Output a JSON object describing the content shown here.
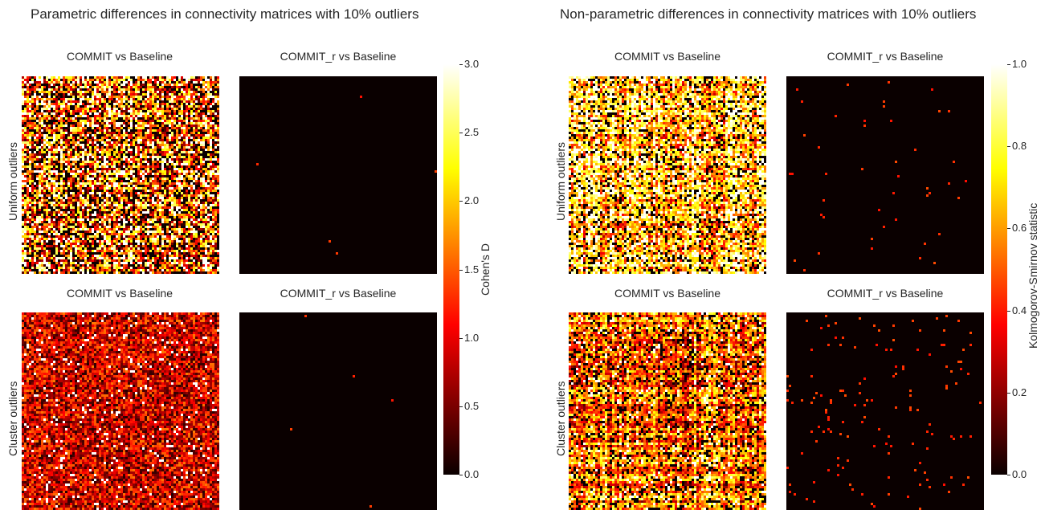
{
  "chart_data": [
    {
      "type": "heatmap",
      "title": "Parametric differences in connectivity matrices with 10% outliers",
      "colormap": "hot",
      "colorbar": {
        "label": "Cohen's D",
        "range": [
          0,
          3.0
        ],
        "ticks": [
          "0.0",
          "0.5",
          "1.0",
          "1.5",
          "2.0",
          "2.5",
          "3.0"
        ]
      },
      "row_labels": [
        "Uniform outliers",
        "Cluster outliers"
      ],
      "panels": [
        {
          "title": "COMMIT vs Baseline",
          "row": 0,
          "size": 82,
          "mean_level": 0.55,
          "spread": 0.5,
          "streaks": true
        },
        {
          "title": "COMMIT_r vs Baseline",
          "row": 0,
          "size": 82,
          "mean_level": 0.0,
          "sparse_points": 5
        },
        {
          "title": "COMMIT vs Baseline",
          "row": 1,
          "size": 82,
          "mean_level": 0.3,
          "spread": 0.25,
          "streaks": false
        },
        {
          "title": "COMMIT_r vs Baseline",
          "row": 1,
          "size": 82,
          "mean_level": 0.0,
          "sparse_points": 5
        }
      ]
    },
    {
      "type": "heatmap",
      "title": "Non-parametric differences in connectivity matrices with 10% outliers",
      "colormap": "hot",
      "colorbar": {
        "label": "Kolmogorov-Smirnov statistic",
        "range": [
          0,
          1.0
        ],
        "ticks": [
          "0.0",
          "0.2",
          "0.4",
          "0.6",
          "0.8",
          "1.0"
        ]
      },
      "row_labels": [
        "Uniform outliers",
        "Cluster outliers"
      ],
      "panels": [
        {
          "title": "COMMIT vs Baseline",
          "row": 0,
          "size": 82,
          "mean_level": 0.7,
          "spread": 0.3,
          "streaks": true
        },
        {
          "title": "COMMIT_r vs Baseline",
          "row": 0,
          "size": 82,
          "mean_level": 0.0,
          "sparse_points": 45
        },
        {
          "title": "COMMIT vs Baseline",
          "row": 1,
          "size": 82,
          "mean_level": 0.55,
          "spread": 0.25,
          "streaks": true
        },
        {
          "title": "COMMIT_r vs Baseline",
          "row": 1,
          "size": 82,
          "mean_level": 0.0,
          "sparse_points": 140
        }
      ]
    }
  ]
}
